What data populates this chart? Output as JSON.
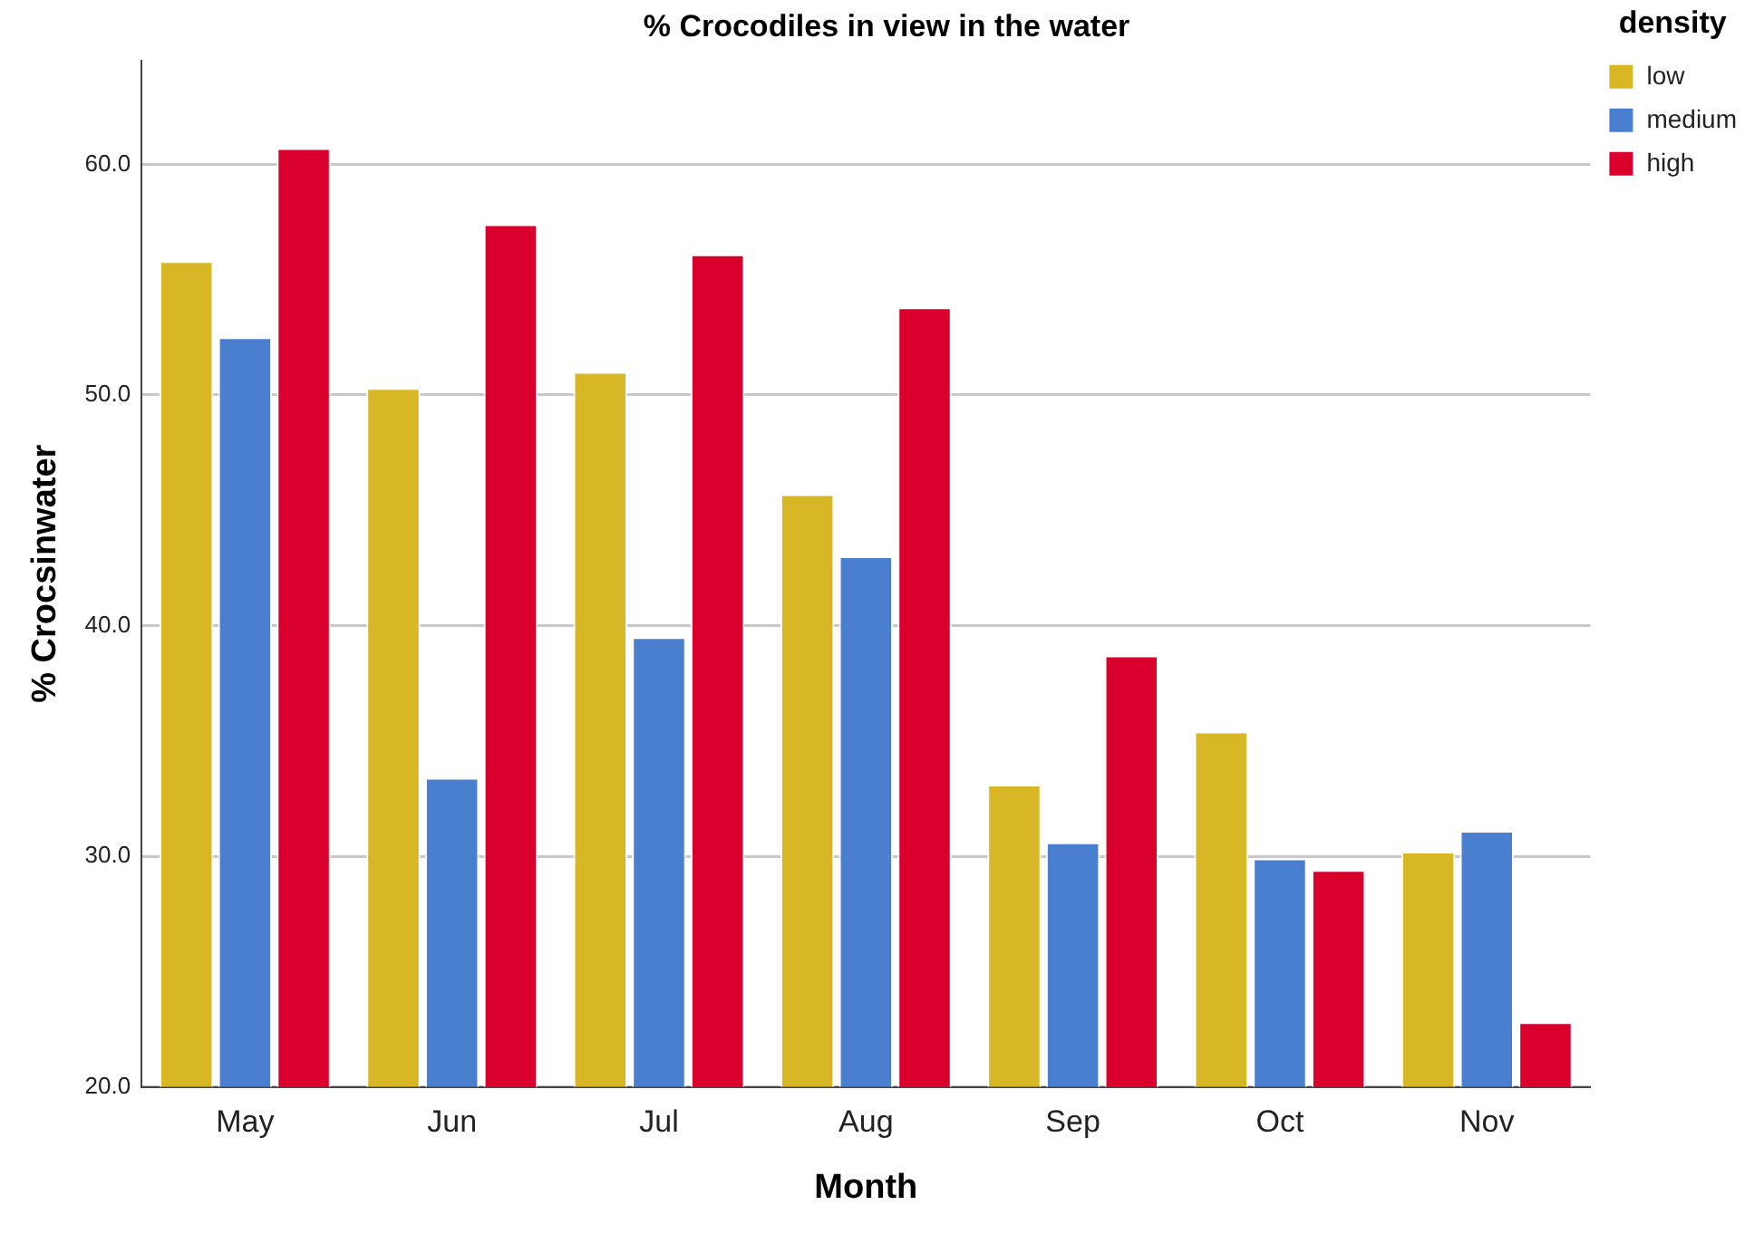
{
  "chart_data": {
    "type": "bar",
    "title": "% Crocodiles in view in the water",
    "xlabel": "Month",
    "ylabel": "% Crocsinwater",
    "legend_title": "density",
    "categories": [
      "May",
      "Jun",
      "Jul",
      "Aug",
      "Sep",
      "Oct",
      "Nov"
    ],
    "series": [
      {
        "name": "low",
        "color": "#d8b727",
        "values": [
          55.8,
          50.3,
          51.0,
          45.7,
          33.1,
          35.4,
          30.2
        ]
      },
      {
        "name": "medium",
        "color": "#4a7fcf",
        "values": [
          52.5,
          33.4,
          39.5,
          43.0,
          30.6,
          29.9,
          31.1
        ]
      },
      {
        "name": "high",
        "color": "#d9002e",
        "values": [
          60.7,
          57.4,
          56.1,
          53.8,
          38.7,
          29.4,
          22.8
        ]
      }
    ],
    "ylim": [
      20,
      64.5
    ],
    "yticks": [
      {
        "value": 20,
        "label": "20.0"
      },
      {
        "value": 30,
        "label": "30.0"
      },
      {
        "value": 40,
        "label": "40.0"
      },
      {
        "value": 50,
        "label": "50.0"
      },
      {
        "value": 60,
        "label": "60.0"
      }
    ],
    "grid": "y",
    "legend": "top right"
  }
}
